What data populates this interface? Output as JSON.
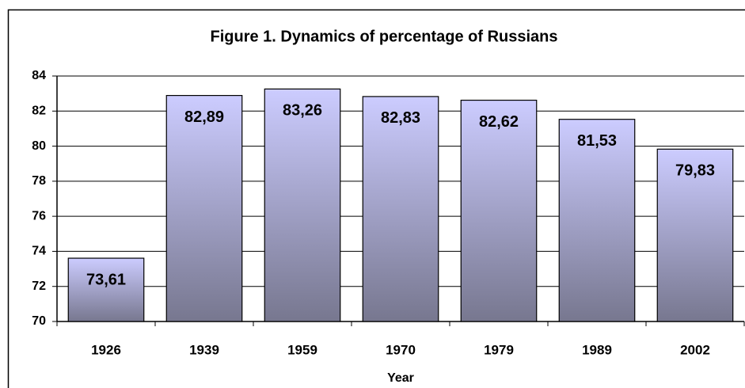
{
  "chart_data": {
    "type": "bar",
    "title": "Figure 1. Dynamics of percentage of Russians",
    "x_label": "Year",
    "categories": [
      "1926",
      "1939",
      "1959",
      "1970",
      "1979",
      "1989",
      "2002"
    ],
    "values": [
      73.61,
      82.89,
      83.26,
      82.83,
      82.62,
      81.53,
      79.83
    ],
    "value_labels": [
      "73,61",
      "82,89",
      "83,26",
      "82,83",
      "82,62",
      "81,53",
      "79,83"
    ],
    "color": [
      "#ccccff",
      "#77778f"
    ],
    "ylim": [
      70,
      84
    ],
    "yticks": [
      70,
      72,
      74,
      76,
      78,
      80,
      82,
      84
    ],
    "grid": true
  }
}
